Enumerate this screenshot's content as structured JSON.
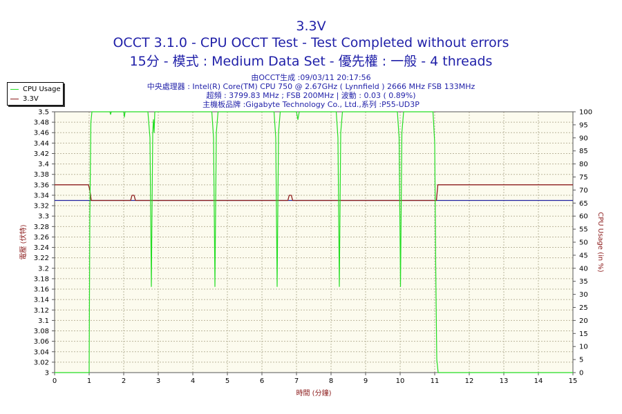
{
  "header": {
    "title": "3.3V",
    "line1": "OCCT 3.1.0 - CPU OCCT Test - Test Completed without errors",
    "line2": "15分 - 模式 : Medium Data Set - 優先權 : 一般 - 4 threads",
    "info1": "由OCCT生成 :09/03/11 20:17:56",
    "info2": "中央處理器 : Intel(R) Core(TM) CPU 750 @ 2.67GHz ( Lynnfield ) 2666 MHz FSB 133MHz",
    "info3": "超頻 : 3799.83 MHz ; FSB 200MHz | 波動 : 0.03 ( 0.89%)",
    "info4": "主機板品牌 :Gigabyte Technology Co., Ltd.,系列 :P55-UD3P"
  },
  "legend": [
    {
      "label": "CPU Usage",
      "color": "#22dd22"
    },
    {
      "label": "3.3V",
      "color": "#8b1a1a"
    }
  ],
  "chart_data": {
    "type": "line",
    "xlabel": "時間 (分鐘)",
    "ylabel_left": "電壓 (伏特)",
    "ylabel_right": "CPU Usage (in %)",
    "xlim": [
      0,
      15
    ],
    "x_ticks": [
      0,
      1,
      2,
      3,
      4,
      5,
      6,
      7,
      8,
      9,
      10,
      11,
      12,
      13,
      14,
      15
    ],
    "ylim_left": [
      3,
      3.5
    ],
    "y_ticks_left": [
      "3",
      "3.02",
      "3.04",
      "3.06",
      "3.08",
      "3.1",
      "3.12",
      "3.14",
      "3.16",
      "3.18",
      "3.2",
      "3.22",
      "3.24",
      "3.26",
      "3.28",
      "3.3",
      "3.32",
      "3.34",
      "3.36",
      "3.38",
      "3.4",
      "3.42",
      "3.44",
      "3.46",
      "3.48",
      "3.5"
    ],
    "ylim_right": [
      0,
      100
    ],
    "y_ticks_right": [
      0,
      5,
      10,
      15,
      20,
      25,
      30,
      35,
      40,
      45,
      50,
      55,
      60,
      65,
      70,
      75,
      80,
      85,
      90,
      95,
      100
    ],
    "grid": true,
    "reference_line": {
      "value": 3.33,
      "axis": "left",
      "color": "#2020a0"
    },
    "series": [
      {
        "name": "3.3V",
        "axis": "left",
        "color": "#8b1a1a",
        "x": [
          0,
          0.98,
          1.02,
          1.06,
          2.2,
          2.24,
          2.3,
          2.34,
          6.75,
          6.79,
          6.85,
          6.89,
          11.05,
          11.09,
          15
        ],
        "y": [
          3.36,
          3.36,
          3.35,
          3.33,
          3.33,
          3.34,
          3.34,
          3.33,
          3.33,
          3.34,
          3.34,
          3.33,
          3.33,
          3.36,
          3.36
        ]
      },
      {
        "name": "CPU Usage",
        "axis": "right",
        "color": "#22dd22",
        "x": [
          0,
          0.98,
          1.0,
          1.02,
          1.05,
          1.08,
          1.6,
          1.62,
          1.64,
          2.0,
          2.02,
          2.04,
          2.7,
          2.76,
          2.8,
          2.84,
          2.86,
          2.88,
          2.9,
          2.95,
          4.55,
          4.6,
          4.64,
          4.68,
          4.73,
          6.35,
          6.4,
          6.44,
          6.48,
          6.53,
          7.0,
          7.04,
          7.08,
          8.15,
          8.2,
          8.24,
          8.28,
          8.33,
          9.92,
          9.97,
          10.01,
          10.05,
          10.1,
          10.95,
          11.0,
          11.03,
          11.06,
          11.1,
          15
        ],
        "y": [
          0,
          0,
          0,
          60,
          96,
          100,
          100,
          99,
          100,
          100,
          98,
          100,
          100,
          90,
          33,
          92,
          97,
          92,
          100,
          100,
          100,
          90,
          33,
          92,
          100,
          100,
          90,
          33,
          92,
          100,
          100,
          97,
          100,
          100,
          90,
          33,
          92,
          100,
          100,
          90,
          33,
          92,
          100,
          100,
          88,
          40,
          5,
          0,
          0
        ]
      }
    ]
  }
}
